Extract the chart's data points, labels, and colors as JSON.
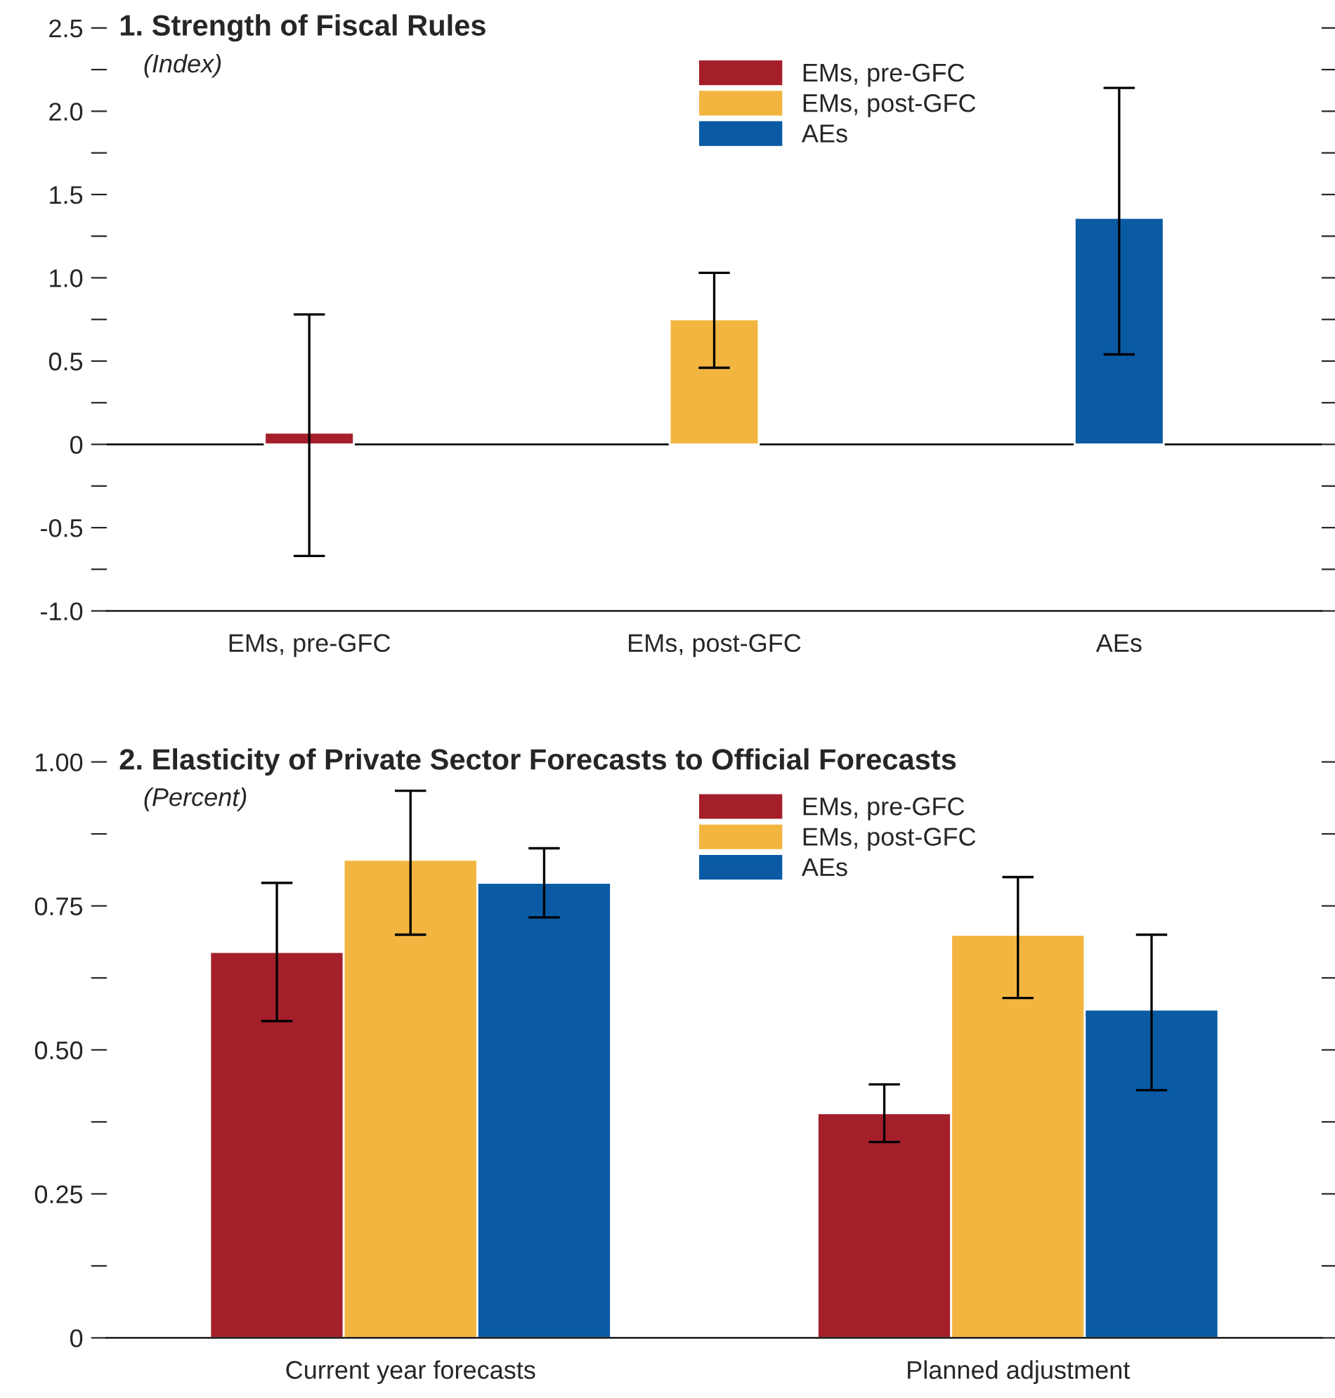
{
  "chart_data": [
    {
      "type": "bar",
      "title": "1. Strength of Fiscal Rules",
      "subtitle": "(Index)",
      "categories": [
        "EMs, pre-GFC",
        "EMs, post-GFC",
        "AEs"
      ],
      "series": [
        {
          "name": "EMs, pre-GFC",
          "color": "#a51f2b",
          "values": [
            0.07,
            null,
            null
          ],
          "errors": [
            [
              -0.67,
              0.78
            ],
            null,
            null
          ]
        },
        {
          "name": "EMs, post-GFC",
          "color": "#f2b640",
          "values": [
            null,
            0.75,
            null
          ],
          "errors": [
            null,
            [
              0.46,
              1.03
            ],
            null
          ]
        },
        {
          "name": "AEs",
          "color": "#0a5aa4",
          "values": [
            null,
            null,
            1.36
          ],
          "errors": [
            null,
            null,
            [
              0.54,
              2.14
            ]
          ]
        }
      ],
      "ylim": [
        -1.0,
        2.5
      ],
      "yticks": [
        {
          "value": -1.0,
          "label": "-1.0"
        },
        {
          "value": -0.75,
          "label": null
        },
        {
          "value": -0.5,
          "label": "-0.5"
        },
        {
          "value": -0.25,
          "label": null
        },
        0,
        {
          "value": 0.25,
          "label": null
        },
        0.5,
        {
          "value": 0.75,
          "label": null
        },
        {
          "value": 1.0,
          "label": "1.0"
        },
        {
          "value": 1.25,
          "label": null
        },
        1.5,
        {
          "value": 1.75,
          "label": null
        },
        {
          "value": 2.0,
          "label": "2.0"
        },
        {
          "value": 2.25,
          "label": null
        },
        2.5
      ],
      "ref_lines": [
        {
          "axis": "y",
          "value": 0,
          "color": "#000000"
        }
      ],
      "legend": "top",
      "grid": false
    },
    {
      "type": "bar",
      "title": "2. Elasticity of Private Sector Forecasts to Official Forecasts",
      "subtitle": "(Percent)",
      "categories": [
        "Current year forecasts",
        "Planned adjustment"
      ],
      "series": [
        {
          "name": "EMs, pre-GFC",
          "color": "#a51f2b",
          "values": [
            0.67,
            0.39
          ],
          "errors": [
            [
              0.55,
              0.79
            ],
            [
              0.34,
              0.44
            ]
          ]
        },
        {
          "name": "EMs, post-GFC",
          "color": "#f2b640",
          "values": [
            0.83,
            0.7
          ],
          "errors": [
            [
              0.7,
              0.95
            ],
            [
              0.59,
              0.8
            ]
          ]
        },
        {
          "name": "AEs",
          "color": "#0a5aa4",
          "values": [
            0.79,
            0.57
          ],
          "errors": [
            [
              0.73,
              0.85
            ],
            [
              0.43,
              0.7
            ]
          ]
        }
      ],
      "ylim": [
        0,
        1.0
      ],
      "yticks": [
        0,
        {
          "value": 0.125,
          "label": null
        },
        0.25,
        {
          "value": 0.375,
          "label": null
        },
        {
          "value": 0.5,
          "label": "0.50"
        },
        {
          "value": 0.625,
          "label": null
        },
        0.75,
        {
          "value": 0.875,
          "label": null
        },
        {
          "value": 1.0,
          "label": "1.00"
        }
      ],
      "legend": "top",
      "grid": false
    }
  ]
}
